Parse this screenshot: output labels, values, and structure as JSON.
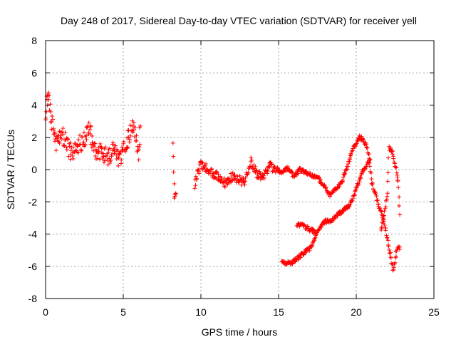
{
  "chart_data": {
    "type": "scatter",
    "title": "Day 248 of 2017, Sidereal Day-to-day VTEC variation (SDTVAR) for receiver yell",
    "xlabel": "GPS time / hours",
    "ylabel": "SDTVAR / TECUs",
    "xlim": [
      0,
      25
    ],
    "ylim": [
      -8,
      8
    ],
    "xticks": [
      0,
      5,
      10,
      15,
      20,
      25
    ],
    "yticks": [
      -8,
      -6,
      -4,
      -2,
      0,
      2,
      4,
      6,
      8
    ],
    "xtick_labels": [
      "0",
      "5",
      "10",
      "15",
      "20",
      "25"
    ],
    "ytick_labels": [
      "-8",
      "-6",
      "-4",
      "-2",
      "0",
      "2",
      "4",
      "6",
      "8"
    ],
    "grid": true,
    "marker": "+",
    "color": "#ff0000",
    "series": [
      {
        "name": "SDTVAR",
        "segments": [
          {
            "x": [
              0.0,
              0.1,
              0.2,
              0.3,
              0.5,
              0.7,
              1.0,
              1.3,
              1.6,
              2.0,
              2.4,
              2.8,
              3.2,
              3.6,
              4.0,
              4.4,
              4.8,
              5.2,
              5.6,
              6.0,
              6.1
            ],
            "y": [
              2.8,
              4.6,
              4.3,
              3.5,
              2.4,
              1.6,
              2.4,
              1.7,
              1.1,
              1.3,
              1.8,
              2.5,
              1.2,
              1.1,
              0.8,
              1.2,
              0.6,
              1.6,
              2.9,
              1.0,
              2.7
            ]
          },
          {
            "x": [
              8.2,
              8.3,
              8.4
            ],
            "y": [
              1.7,
              -1.8,
              -1.5
            ]
          },
          {
            "x": [
              9.6,
              10.0,
              10.4,
              10.8,
              11.2,
              11.6,
              12.0,
              12.4,
              12.8,
              13.2,
              13.6,
              14.0,
              14.4,
              14.8,
              15.2,
              15.6,
              16.0,
              16.4,
              16.8,
              17.2,
              17.6,
              18.0,
              18.3,
              18.6,
              19.0,
              19.4,
              19.8,
              20.2,
              20.4,
              20.6,
              20.8,
              21.0,
              21.4,
              21.8,
              22.1,
              22.4,
              22.6,
              22.8
            ],
            "y": [
              -0.9,
              0.4,
              0.0,
              -0.3,
              -0.5,
              -0.9,
              -0.4,
              -0.6,
              -0.8,
              0.5,
              -0.3,
              -0.5,
              0.3,
              0.0,
              -0.2,
              0.1,
              -0.4,
              0.0,
              -0.2,
              -0.4,
              -0.6,
              -1.1,
              -1.6,
              -1.3,
              -0.9,
              0.1,
              1.3,
              2.0,
              1.9,
              1.6,
              1.0,
              -0.8,
              -2.1,
              -3.2,
              -4.8,
              -6.3,
              -5.0,
              -4.8
            ]
          },
          {
            "x": [
              15.2,
              15.5,
              15.8,
              16.2,
              16.6,
              17.0,
              17.3,
              17.6,
              18.0,
              18.4,
              18.8,
              19.2,
              19.6,
              20.0,
              20.3,
              20.6,
              20.9
            ],
            "y": [
              -5.6,
              -5.8,
              -5.8,
              -5.5,
              -5.2,
              -4.9,
              -4.4,
              -3.6,
              -3.2,
              -3.2,
              -2.8,
              -2.5,
              -2.2,
              -1.2,
              -0.4,
              0.2,
              0.6
            ]
          },
          {
            "x": [
              16.2,
              16.6,
              17.0,
              17.4
            ],
            "y": [
              -3.4,
              -3.5,
              -3.7,
              -3.9
            ]
          },
          {
            "x": [
              21.6,
              21.8,
              22.0,
              22.1,
              22.3,
              22.5,
              22.7,
              22.8
            ],
            "y": [
              -3.8,
              -2.8,
              -1.5,
              1.3,
              1.2,
              0.3,
              -0.7,
              -2.8
            ]
          }
        ]
      }
    ]
  }
}
